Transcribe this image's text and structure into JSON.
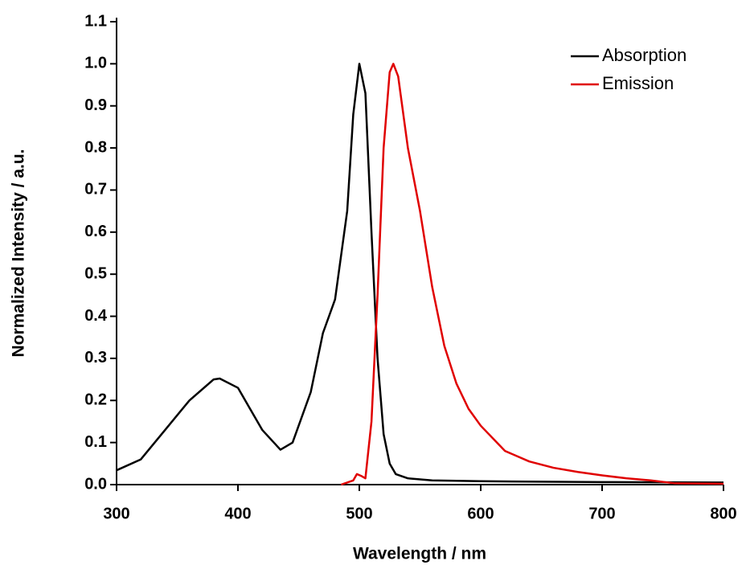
{
  "chart_data": {
    "type": "line",
    "xlabel": "Wavelength / nm",
    "ylabel": "Normalized Intensity / a.u.",
    "xlim": [
      300,
      800
    ],
    "ylim": [
      0,
      1.1
    ],
    "xticks": [
      300,
      400,
      500,
      600,
      700,
      800
    ],
    "yticks": [
      {
        "value": 0,
        "label": "0.0"
      },
      0.1,
      0.2,
      0.3,
      0.4,
      0.5,
      0.6,
      0.7,
      0.8,
      0.9,
      {
        "value": 1,
        "label": "1.0"
      },
      1.1
    ],
    "legend": "upper right",
    "series": [
      {
        "name": "Absorption",
        "color": "#000000",
        "x": [
          300,
          320,
          340,
          360,
          380,
          385,
          400,
          420,
          435,
          445,
          460,
          470,
          480,
          490,
          495,
          500,
          505,
          510,
          515,
          520,
          525,
          530,
          540,
          560,
          600,
          700,
          800
        ],
        "values": [
          0.034,
          0.06,
          0.13,
          0.2,
          0.25,
          0.252,
          0.23,
          0.13,
          0.083,
          0.1,
          0.22,
          0.36,
          0.44,
          0.65,
          0.88,
          1.0,
          0.93,
          0.6,
          0.3,
          0.12,
          0.05,
          0.025,
          0.015,
          0.01,
          0.008,
          0.006,
          0.005
        ]
      },
      {
        "name": "Emission",
        "color": "#e00000",
        "x": [
          485,
          495,
          498,
          502,
          505,
          510,
          515,
          520,
          525,
          528,
          532,
          540,
          550,
          560,
          570,
          580,
          590,
          600,
          620,
          640,
          660,
          680,
          700,
          720,
          740,
          760,
          800
        ],
        "values": [
          0,
          0.01,
          0.025,
          0.02,
          0.015,
          0.15,
          0.45,
          0.8,
          0.98,
          1.0,
          0.97,
          0.8,
          0.65,
          0.47,
          0.33,
          0.24,
          0.18,
          0.14,
          0.08,
          0.055,
          0.04,
          0.03,
          0.022,
          0.015,
          0.01,
          0.003,
          0.002
        ]
      }
    ]
  }
}
